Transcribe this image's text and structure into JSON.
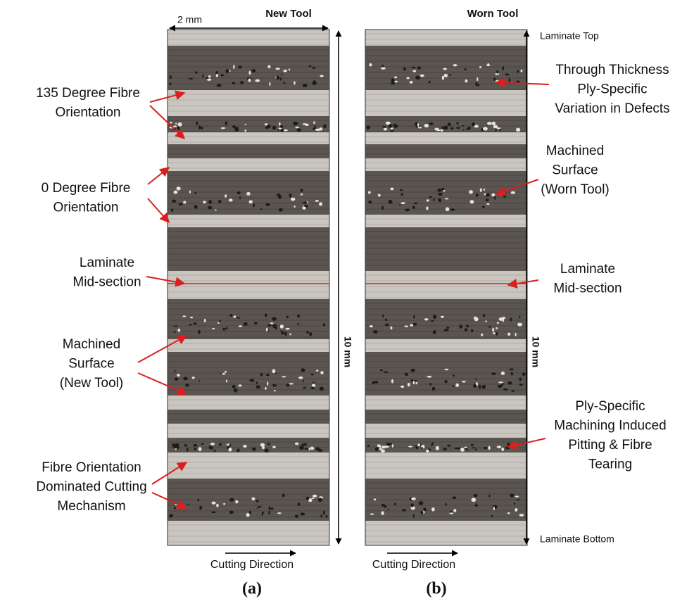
{
  "panel_a": {
    "header": "New Tool",
    "width_scale": "2 mm",
    "height_scale": "10 mm",
    "direction": "Cutting Direction",
    "caption": "(a)",
    "annotations": [
      {
        "lines": [
          "135 Degree Fibre",
          "Orientation"
        ]
      },
      {
        "lines": [
          "0 Degree Fibre",
          "Orientation"
        ]
      },
      {
        "lines": [
          "Laminate",
          "Mid-section"
        ]
      },
      {
        "lines": [
          "Machined",
          "Surface",
          "(New Tool)"
        ]
      },
      {
        "lines": [
          "Fibre Orientation",
          "Dominated Cutting",
          "Mechanism"
        ]
      }
    ]
  },
  "panel_b": {
    "header": "Worn Tool",
    "height_scale": "10 mm",
    "top_label": "Laminate Top",
    "bottom_label": "Laminate Bottom",
    "direction": "Cutting Direction",
    "caption": "(b)",
    "annotations": [
      {
        "lines": [
          "Through Thickness",
          "Ply-Specific",
          "Variation in Defects"
        ]
      },
      {
        "lines": [
          "Machined",
          "Surface",
          "(Worn Tool)"
        ]
      },
      {
        "lines": [
          "Laminate",
          "Mid-section"
        ]
      },
      {
        "lines": [
          "Ply-Specific",
          "Machining Induced",
          "Pitting & Fibre",
          "Tearing"
        ]
      }
    ]
  }
}
